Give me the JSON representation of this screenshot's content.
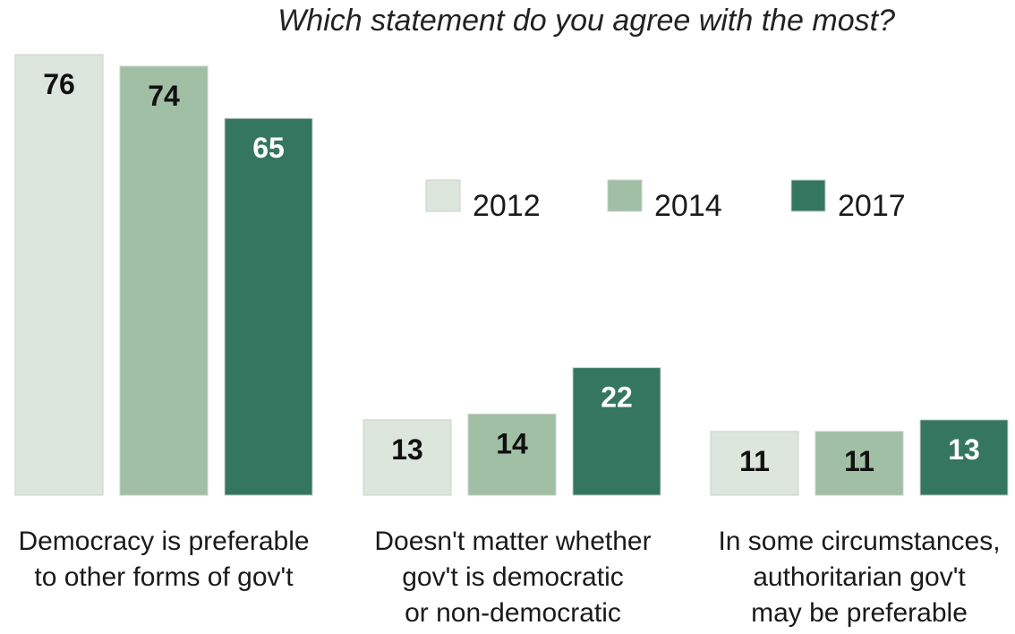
{
  "chart_data": {
    "type": "bar",
    "title": "Which statement do you agree with the most?",
    "categories": [
      [
        "Democracy is preferable",
        "to other forms of gov't"
      ],
      [
        "Doesn't matter whether",
        "gov't is democratic",
        "or non-democratic"
      ],
      [
        "In some circumstances,",
        "authoritarian gov't",
        "may be preferable"
      ]
    ],
    "series": [
      {
        "name": "2012",
        "values": [
          76,
          13,
          11
        ],
        "color": "#dde6dd",
        "label_color": "#111111"
      },
      {
        "name": "2014",
        "values": [
          74,
          14,
          11
        ],
        "color": "#a0bfa4",
        "label_color": "#111111"
      },
      {
        "name": "2017",
        "values": [
          65,
          22,
          13
        ],
        "color": "#357660",
        "label_color": "#ffffff"
      }
    ],
    "legend_position": "top-right",
    "grid": false,
    "ylim": [
      0,
      76
    ]
  }
}
